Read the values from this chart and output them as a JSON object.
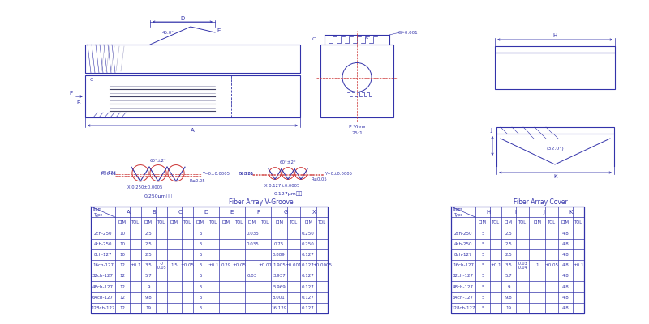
{
  "bg_color": "#ffffff",
  "line_color": "#3333aa",
  "red_color": "#cc3333",
  "gray_color": "#888888",
  "table1_title": "Fiber Array V-Groove",
  "table2_title": "Fiber Array Cover",
  "table1_rows": [
    [
      "2ch-250",
      "10",
      "",
      "2.5",
      "",
      "",
      "",
      "5",
      "",
      "",
      "",
      "0.035",
      "",
      "",
      "",
      "0.250",
      ""
    ],
    [
      "4ch-250",
      "10",
      "",
      "2.5",
      "",
      "",
      "",
      "5",
      "",
      "",
      "",
      "0.035",
      "",
      "0.75",
      "",
      "0.250",
      ""
    ],
    [
      "8ch-127",
      "10",
      "",
      "2.5",
      "",
      "",
      "",
      "5",
      "",
      "",
      "",
      "",
      "",
      "0.889",
      "",
      "0.127",
      ""
    ],
    [
      "16ch-127",
      "12",
      "±0.1",
      "3.5",
      "-0\n-0.05",
      "1.5",
      "±0.05",
      "5",
      "±0.1",
      "0.29",
      "±0.05",
      "",
      "±0.01",
      "1.905",
      "±0.001",
      "0.127",
      "±0.0005"
    ],
    [
      "32ch-127",
      "12",
      "",
      "5.7",
      "",
      "",
      "",
      "5",
      "",
      "",
      "",
      "0.03",
      "",
      "3.937",
      "",
      "0.127",
      ""
    ],
    [
      "48ch-127",
      "12",
      "",
      "9",
      "",
      "",
      "",
      "5",
      "",
      "",
      "",
      "",
      "",
      "5.969",
      "",
      "0.127",
      ""
    ],
    [
      "64ch-127",
      "12",
      "",
      "9.8",
      "",
      "",
      "",
      "5",
      "",
      "",
      "",
      "",
      "",
      "8.001",
      "",
      "0.127",
      ""
    ],
    [
      "128ch-127",
      "12",
      "",
      "19",
      "",
      "",
      "",
      "5",
      "",
      "",
      "",
      "",
      "",
      "16.129",
      "",
      "0.127",
      ""
    ]
  ],
  "table2_rows": [
    [
      "2ch-250",
      "5",
      "",
      "2.5",
      "",
      "",
      "",
      "4.8",
      ""
    ],
    [
      "4ch-250",
      "5",
      "",
      "2.5",
      "",
      "",
      "",
      "4.8",
      ""
    ],
    [
      "8ch-127",
      "5",
      "",
      "2.5",
      "",
      "",
      "",
      "4.8",
      ""
    ],
    [
      "16ch-127",
      "5",
      "±0.1",
      "3.5",
      "-0.03\n-0.04",
      "1",
      "±0.05",
      "4.8",
      "±0.1"
    ],
    [
      "32ch-127",
      "5",
      "",
      "5.7",
      "",
      "",
      "",
      "4.8",
      ""
    ],
    [
      "48ch-127",
      "5",
      "",
      "9",
      "",
      "",
      "",
      "4.8",
      ""
    ],
    [
      "64ch-127",
      "5",
      "",
      "9.8",
      "",
      "",
      "",
      "4.8",
      ""
    ],
    [
      "128ch-127",
      "5",
      "",
      "19",
      "",
      "",
      "",
      "4.8",
      ""
    ]
  ]
}
